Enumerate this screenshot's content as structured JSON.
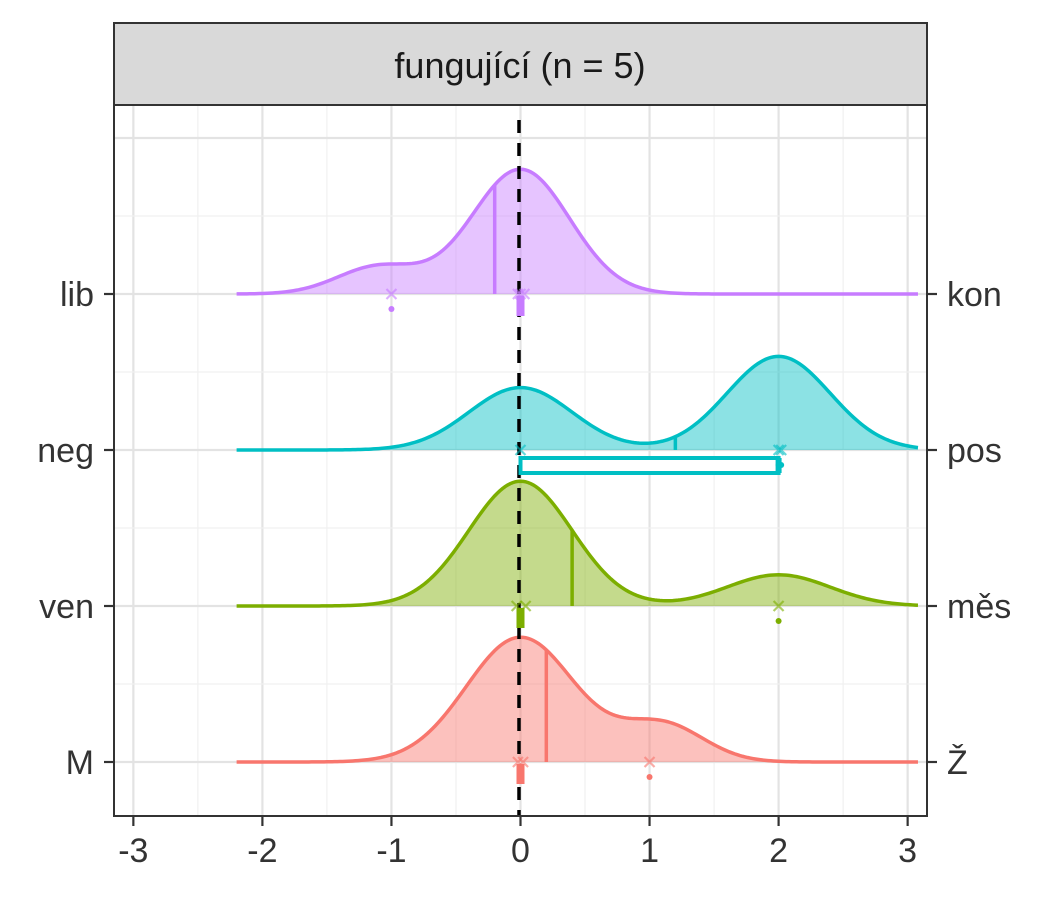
{
  "chart_data": {
    "type": "ridgeline-density",
    "facet_title": "fungující (n = 5)",
    "xlim": [
      -3.15,
      3.15
    ],
    "x_ticks": [
      -3,
      -2,
      -1,
      0,
      1,
      2,
      3
    ],
    "x_tick_labels": [
      "-3",
      "-2",
      "-1",
      "0",
      "1",
      "2",
      "3"
    ],
    "grid": true,
    "reference_line_x": 0,
    "series": [
      {
        "left_label": "M",
        "right_label": "Ž",
        "color": "#F8766D",
        "peak_height": 0.8,
        "components": [
          {
            "mu": 0.0,
            "sd": 0.42,
            "w": 1.0
          },
          {
            "mu": 1.1,
            "sd": 0.32,
            "w": 0.3
          }
        ],
        "mean": 0.2,
        "points_x": [
          -0.02,
          0.02,
          1.0
        ],
        "interval": [
          0.0,
          0.0
        ]
      },
      {
        "left_label": "ven",
        "right_label": "měs",
        "color": "#7CAE00",
        "peak_height": 0.8,
        "components": [
          {
            "mu": 0.0,
            "sd": 0.4,
            "w": 1.0
          },
          {
            "mu": 2.0,
            "sd": 0.4,
            "w": 0.25
          }
        ],
        "mean": 0.4,
        "points_x": [
          -0.03,
          0.04,
          2.0
        ],
        "interval": [
          0.0,
          0.0
        ]
      },
      {
        "left_label": "neg",
        "right_label": "pos",
        "color": "#00BFC4",
        "peak_height": 0.6,
        "components": [
          {
            "mu": 0.0,
            "sd": 0.4,
            "w": 0.4
          },
          {
            "mu": 2.0,
            "sd": 0.4,
            "w": 0.6
          }
        ],
        "mean": 1.2,
        "points_x": [
          0.0,
          2.0,
          2.02
        ],
        "interval": [
          0.0,
          2.0
        ]
      },
      {
        "left_label": "lib",
        "right_label": "kon",
        "color": "#C77CFF",
        "peak_height": 0.8,
        "components": [
          {
            "mu": 0.0,
            "sd": 0.38,
            "w": 1.0
          },
          {
            "mu": -1.1,
            "sd": 0.32,
            "w": 0.22
          }
        ],
        "mean": -0.2,
        "points_x": [
          -1.0,
          -0.02,
          0.0,
          0.03
        ],
        "interval": [
          0.0,
          0.0
        ]
      }
    ]
  }
}
